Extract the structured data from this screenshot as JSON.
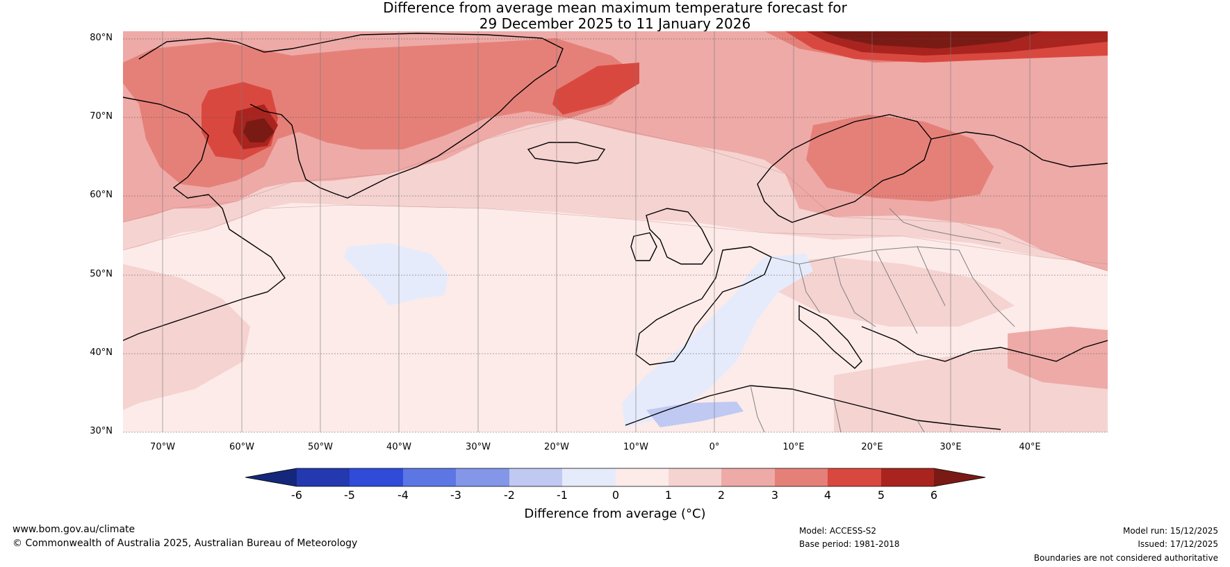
{
  "title": {
    "line1": "Difference from average mean maximum temperature forecast for",
    "line2": "29 December 2025 to 11 January 2026"
  },
  "map": {
    "region": "North Atlantic and Europe",
    "lat_labels": [
      "80°N",
      "70°N",
      "60°N",
      "50°N",
      "40°N",
      "30°N"
    ],
    "lon_labels": [
      "70°W",
      "60°W",
      "50°W",
      "40°W",
      "30°W",
      "20°W",
      "10°W",
      "0°",
      "10°E",
      "20°E",
      "30°E",
      "40°E"
    ]
  },
  "colorbar": {
    "ticks": [
      "-6",
      "-5",
      "-4",
      "-3",
      "-2",
      "-1",
      "0",
      "1",
      "2",
      "3",
      "4",
      "5",
      "6"
    ],
    "label": "Difference from average (°C)",
    "colors": [
      "#15277a",
      "#2438b0",
      "#2f4bd8",
      "#5c76e4",
      "#8496e8",
      "#bfc9f2",
      "#e6ebfb",
      "#fcebe9",
      "#f5d3d1",
      "#eeaaa7",
      "#e58079",
      "#d9483f",
      "#a9241f",
      "#7a1a14"
    ]
  },
  "footer": {
    "website": "www.bom.gov.au/climate",
    "copyright": "© Commonwealth of Australia 2025, Australian Bureau of Meteorology",
    "model": "Model: ACCESS-S2",
    "base_period": "Base period: 1981-2018",
    "model_run": "Model run: 15/12/2025",
    "issued": "Issued: 17/12/2025",
    "disclaimer": "Boundaries are not considered authoritative"
  }
}
